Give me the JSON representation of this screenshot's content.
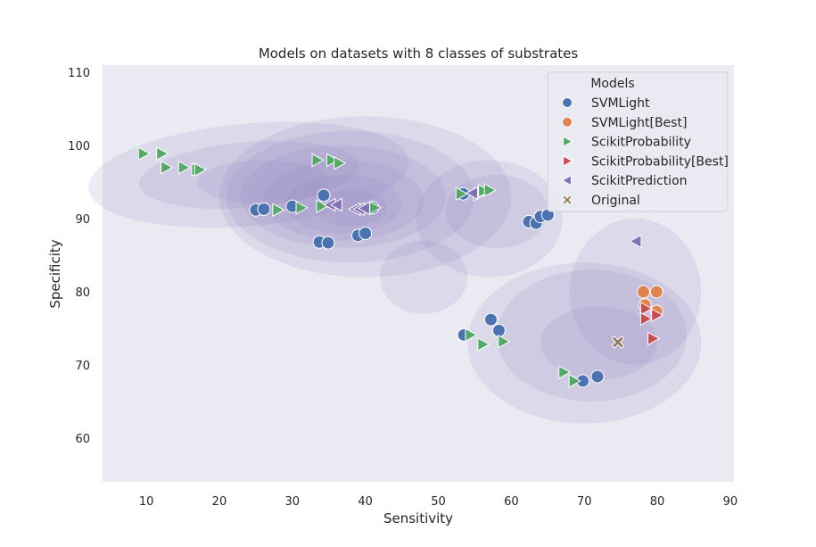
{
  "chart_data": {
    "type": "scatter",
    "title": "Models on datasets with 8 classes of substrates",
    "xlabel": "Sensitivity",
    "ylabel": "Specificity",
    "xlim": [
      4,
      90.5
    ],
    "ylim": [
      54,
      111
    ],
    "xticks": [
      "10",
      "20",
      "30",
      "40",
      "50",
      "60",
      "70",
      "80",
      "90"
    ],
    "yticks": [
      "60",
      "70",
      "80",
      "90",
      "100",
      "110"
    ],
    "grid": false,
    "background": "#eaeaf2",
    "legend": {
      "title": "Models",
      "placement": "top-right",
      "entries": [
        "SVMLight",
        "SVMLight[Best]",
        "ScikitProbability",
        "ScikitProbability[Best]",
        "ScikitPrediction",
        "Original"
      ]
    },
    "density_levels": [
      {
        "level": 1,
        "blobs": [
          {
            "cx": 24,
            "cy": 96,
            "rx": 22,
            "ry": 7,
            "rot": -5
          },
          {
            "cx": 40,
            "cy": 93,
            "rx": 20,
            "ry": 11,
            "rot": 0
          },
          {
            "cx": 57,
            "cy": 90,
            "rx": 10,
            "ry": 8,
            "rot": 0
          },
          {
            "cx": 70,
            "cy": 73,
            "rx": 16,
            "ry": 11,
            "rot": 0
          },
          {
            "cx": 77,
            "cy": 80,
            "rx": 9,
            "ry": 10,
            "rot": 0
          },
          {
            "cx": 48,
            "cy": 82,
            "rx": 6,
            "ry": 5,
            "rot": 0
          }
        ]
      },
      {
        "level": 2,
        "blobs": [
          {
            "cx": 24,
            "cy": 96,
            "rx": 15,
            "ry": 4.5,
            "rot": -5
          },
          {
            "cx": 38,
            "cy": 93,
            "rx": 17,
            "ry": 9,
            "rot": 0
          },
          {
            "cx": 58,
            "cy": 91,
            "rx": 7,
            "ry": 5,
            "rot": 0
          },
          {
            "cx": 71,
            "cy": 74,
            "rx": 13,
            "ry": 9,
            "rot": 0
          }
        ]
      },
      {
        "level": 3,
        "blobs": [
          {
            "cx": 26,
            "cy": 95,
            "rx": 9,
            "ry": 3,
            "rot": 0
          },
          {
            "cx": 37,
            "cy": 93,
            "rx": 14,
            "ry": 7,
            "rot": 0
          },
          {
            "cx": 72,
            "cy": 73,
            "rx": 8,
            "ry": 5,
            "rot": 0
          }
        ]
      },
      {
        "level": 4,
        "blobs": [
          {
            "cx": 37,
            "cy": 92.5,
            "rx": 11,
            "ry": 5.5,
            "rot": 0
          }
        ]
      },
      {
        "level": 5,
        "blobs": [
          {
            "cx": 37,
            "cy": 92,
            "rx": 8,
            "ry": 4,
            "rot": 0
          }
        ]
      },
      {
        "level": 6,
        "blobs": [
          {
            "cx": 38,
            "cy": 91.5,
            "rx": 5,
            "ry": 2.5,
            "rot": 0
          }
        ]
      }
    ],
    "series": [
      {
        "name": "SVMLight",
        "marker": "circle",
        "color": "#4c72b0",
        "points": [
          [
            25,
            91.2
          ],
          [
            26.1,
            91.3
          ],
          [
            30,
            91.7
          ],
          [
            34.3,
            93.2
          ],
          [
            41,
            91.5
          ],
          [
            39,
            87.7
          ],
          [
            40,
            88
          ],
          [
            33.7,
            86.8
          ],
          [
            34.9,
            86.7
          ],
          [
            53.4,
            93.4
          ],
          [
            62.4,
            89.6
          ],
          [
            63.4,
            89.4
          ],
          [
            64,
            90.3
          ],
          [
            65,
            90.5
          ],
          [
            57.2,
            76.2
          ],
          [
            58.3,
            74.7
          ],
          [
            53.5,
            74.1
          ],
          [
            69.8,
            67.8
          ],
          [
            71.8,
            68.4
          ]
        ]
      },
      {
        "name": "SVMLight[Best]",
        "marker": "circle",
        "color": "#dd8452",
        "points": [
          [
            78.1,
            80
          ],
          [
            79.9,
            80
          ],
          [
            78.3,
            78.2
          ],
          [
            79.9,
            77.3
          ]
        ]
      },
      {
        "name": "ScikitProbability",
        "marker": "triangle-right",
        "color": "#55a868",
        "points": [
          [
            9.6,
            98.9
          ],
          [
            12.1,
            98.9
          ],
          [
            12.7,
            97
          ],
          [
            15.1,
            97
          ],
          [
            16.9,
            96.7
          ],
          [
            17.3,
            96.7
          ],
          [
            33.4,
            98
          ],
          [
            35.4,
            98
          ],
          [
            36.4,
            97.6
          ],
          [
            28,
            91.2
          ],
          [
            31.2,
            91.5
          ],
          [
            34,
            91.7
          ],
          [
            41.3,
            91.5
          ],
          [
            53.1,
            93.4
          ],
          [
            55.5,
            93.3
          ],
          [
            56.2,
            93.8
          ],
          [
            57,
            93.9
          ],
          [
            54.4,
            74.1
          ],
          [
            56.1,
            72.8
          ],
          [
            58.9,
            73.2
          ],
          [
            67.2,
            69
          ],
          [
            68.6,
            67.8
          ]
        ]
      },
      {
        "name": "ScikitProbability[Best]",
        "marker": "triangle-right",
        "color": "#c44e52",
        "points": [
          [
            78.4,
            77.7
          ],
          [
            78.4,
            76.3
          ],
          [
            79.9,
            76.8
          ],
          [
            79.4,
            73.6
          ]
        ]
      },
      {
        "name": "ScikitPrediction",
        "marker": "triangle-left",
        "color": "#8172b3",
        "points": [
          [
            35.2,
            91.9
          ],
          [
            36.1,
            91.9
          ],
          [
            38.6,
            91.3
          ],
          [
            39.2,
            91.3
          ],
          [
            39.9,
            91.4
          ],
          [
            54.7,
            93.5
          ],
          [
            77.1,
            86.9
          ]
        ]
      },
      {
        "name": "Original",
        "marker": "x",
        "color": "#937860",
        "points": [
          [
            74.6,
            73.1
          ]
        ]
      }
    ]
  }
}
